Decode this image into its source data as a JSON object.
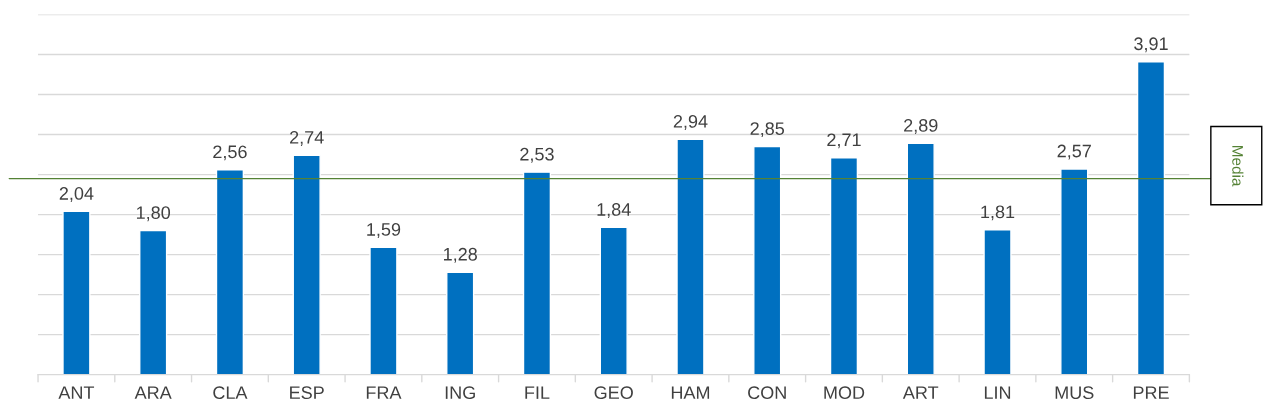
{
  "chart_data": {
    "type": "bar",
    "categories": [
      "ANT",
      "ARA",
      "CLA",
      "ESP",
      "FRA",
      "ING",
      "FIL",
      "GEO",
      "HAM",
      "CON",
      "MOD",
      "ART",
      "LIN",
      "MUS",
      "PRE"
    ],
    "values": [
      2.04,
      1.8,
      2.56,
      2.74,
      1.59,
      1.28,
      2.53,
      1.84,
      2.94,
      2.85,
      2.71,
      2.89,
      1.81,
      2.57,
      3.91
    ],
    "value_labels": [
      "2,04",
      "1,80",
      "2,56",
      "2,74",
      "1,59",
      "1,28",
      "2,53",
      "1,84",
      "2,94",
      "2,85",
      "2,71",
      "2,89",
      "1,81",
      "2,57",
      "3,91"
    ],
    "color": "#0070c0",
    "ylim": [
      0,
      4.5
    ],
    "yticks": [
      {
        "value": 0.5,
        "label": null
      },
      {
        "value": 1,
        "label": null
      },
      {
        "value": 1.5,
        "label": null
      },
      {
        "value": 2,
        "label": null
      },
      {
        "value": 2.5,
        "label": null
      },
      {
        "value": 3,
        "label": null
      },
      {
        "value": 3.5,
        "label": null
      },
      {
        "value": 4,
        "label": null
      },
      {
        "value": 4.5,
        "label": null
      }
    ],
    "tick_labels": "x",
    "grid": "y",
    "ref_lines": [
      {
        "axis": "y",
        "value": 2.45,
        "label": "Media",
        "color": "#548235"
      }
    ]
  }
}
